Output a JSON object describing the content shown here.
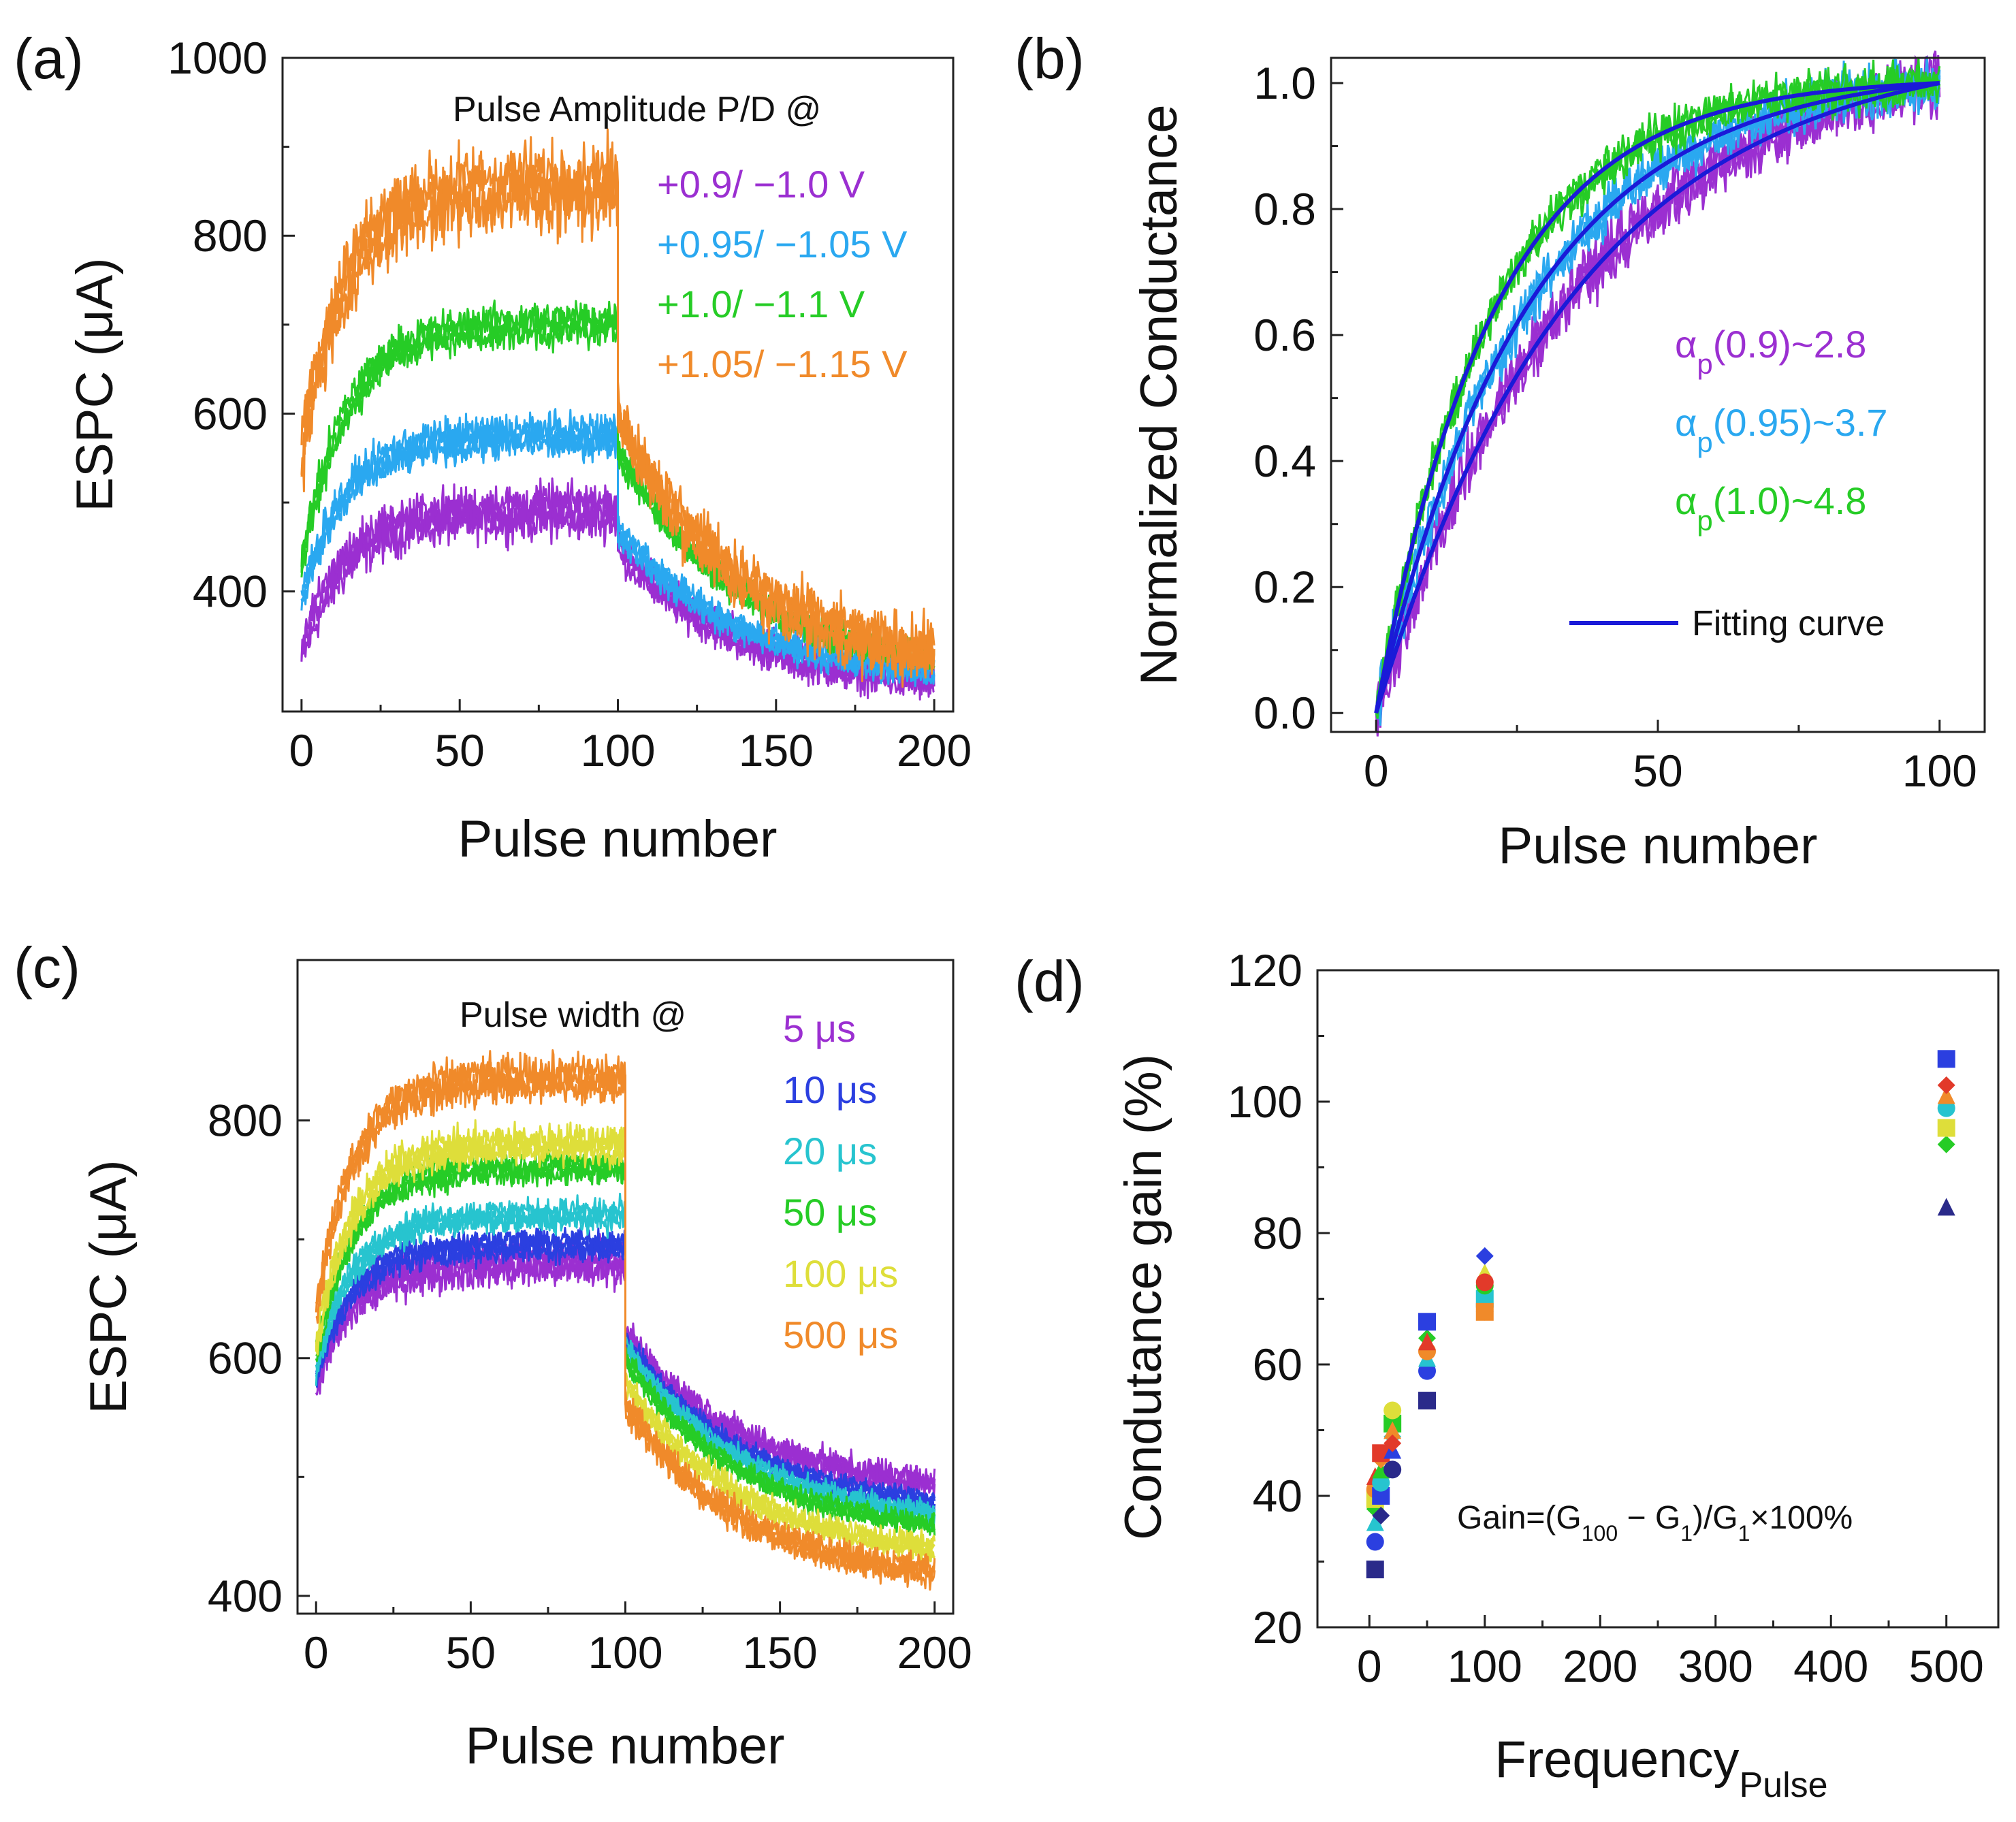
{
  "colors": {
    "purple": "#9b2fd1",
    "sky": "#2aa8f0",
    "green": "#26cc26",
    "orange": "#f08a2a",
    "blue": "#2b3fe0",
    "cyan": "#27c4cf",
    "yellow": "#dede3a",
    "fit": "#1a1ad8",
    "navy": "#2a2a8a",
    "red": "#e23a2a"
  },
  "chart_data": [
    {
      "id": "a",
      "type": "line",
      "panel_label": "(a)",
      "xlabel": "Pulse number",
      "ylabel": "ESPC (μA)",
      "xlim": [
        -6,
        206
      ],
      "ylim": [
        265,
        1000
      ],
      "xticks": [
        "0",
        "50",
        "100",
        "150",
        "200"
      ],
      "xtick_values": [
        0,
        50,
        100,
        150,
        200
      ],
      "yticks": [
        "400",
        "600",
        "800",
        "1000"
      ],
      "ytick_values": [
        400,
        600,
        800,
        1000
      ],
      "legend_title": "Pulse Amplitude P/D @",
      "legend": [
        "+0.9/ −1.0 V",
        "+0.95/ −1.05 V",
        "+1.0/ −1.1 V",
        "+1.05/ −1.15 V"
      ],
      "series": [
        {
          "name": "+0.9/ −1.0 V",
          "color": "purple",
          "start": 330,
          "potentiation_end": 490,
          "depression_start": 450,
          "end": 300,
          "noise": 22
        },
        {
          "name": "+0.95/ −1.05 V",
          "color": "sky",
          "start": 390,
          "potentiation_end": 575,
          "depression_start": 470,
          "end": 310,
          "noise": 18
        },
        {
          "name": "+1.0/ −1.1 V",
          "color": "green",
          "start": 430,
          "potentiation_end": 700,
          "depression_start": 560,
          "end": 328,
          "noise": 18
        },
        {
          "name": "+1.05/ −1.15 V",
          "color": "orange",
          "start": 560,
          "potentiation_end": 855,
          "depression_start": 600,
          "end": 330,
          "noise": 35
        }
      ]
    },
    {
      "id": "b",
      "type": "line",
      "panel_label": "(b)",
      "xlabel": "Pulse number",
      "ylabel": "Normalized Conductance",
      "xlim": [
        -8,
        108
      ],
      "ylim": [
        -0.03,
        1.04
      ],
      "xticks": [
        "0",
        "50",
        "100"
      ],
      "xtick_values": [
        0,
        50,
        100
      ],
      "yticks": [
        "0.0",
        "0.2",
        "0.4",
        "0.6",
        "0.8",
        "1.0"
      ],
      "ytick_values": [
        0,
        0.2,
        0.4,
        0.6,
        0.8,
        1.0
      ],
      "legend_fit": "Fitting curve",
      "annotations": [
        {
          "base": "α",
          "sub": "p",
          "rest": "(0.9)~2.8",
          "color": "purple"
        },
        {
          "base": "α",
          "sub": "p",
          "rest": "(0.95)~3.7",
          "color": "sky"
        },
        {
          "base": "α",
          "sub": "p",
          "rest": "(1.0)~4.8",
          "color": "green"
        }
      ],
      "series": [
        {
          "name": "0.9",
          "alpha": 2.8,
          "color": "purple",
          "noise": 0.05
        },
        {
          "name": "0.95",
          "alpha": 3.7,
          "color": "sky",
          "noise": 0.04
        },
        {
          "name": "1.0",
          "alpha": 4.8,
          "color": "green",
          "noise": 0.035
        }
      ]
    },
    {
      "id": "c",
      "type": "line",
      "panel_label": "(c)",
      "xlabel": "Pulse number",
      "ylabel": "ESPC (μA)",
      "xlim": [
        -6,
        206
      ],
      "ylim": [
        385,
        935
      ],
      "xticks": [
        "0",
        "50",
        "100",
        "150",
        "200"
      ],
      "xtick_values": [
        0,
        50,
        100,
        150,
        200
      ],
      "yticks": [
        "400",
        "600",
        "800"
      ],
      "ytick_values": [
        400,
        600,
        800
      ],
      "legend_title": "Pulse width @",
      "legend": [
        "5 μs",
        "10 μs",
        "20 μs",
        "50 μs",
        "100 μs",
        "500 μs"
      ],
      "series": [
        {
          "name": "5 μs",
          "color": "purple",
          "start": 580,
          "potentiation_end": 680,
          "depression_start": 620,
          "end": 495,
          "noise": 14
        },
        {
          "name": "10 μs",
          "color": "blue",
          "start": 585,
          "potentiation_end": 695,
          "depression_start": 615,
          "end": 480,
          "noise": 10
        },
        {
          "name": "20 μs",
          "color": "cyan",
          "start": 590,
          "potentiation_end": 720,
          "depression_start": 610,
          "end": 470,
          "noise": 10
        },
        {
          "name": "50 μs",
          "color": "green",
          "start": 600,
          "potentiation_end": 760,
          "depression_start": 600,
          "end": 460,
          "noise": 10
        },
        {
          "name": "100 μs",
          "color": "yellow",
          "start": 610,
          "potentiation_end": 780,
          "depression_start": 580,
          "end": 440,
          "noise": 12
        },
        {
          "name": "500 μs",
          "color": "orange",
          "start": 640,
          "potentiation_end": 835,
          "depression_start": 560,
          "end": 420,
          "noise": 14
        }
      ]
    },
    {
      "id": "d",
      "type": "scatter",
      "panel_label": "(d)",
      "xlabel": "Frequency",
      "xlabel_sub": "Pulse",
      "ylabel": "Condutance gain (%)",
      "xlim": [
        -45,
        545
      ],
      "ylim": [
        20,
        120
      ],
      "xticks": [
        "0",
        "100",
        "200",
        "300",
        "400",
        "500"
      ],
      "xtick_values": [
        0,
        100,
        200,
        300,
        400,
        500
      ],
      "yticks": [
        "20",
        "40",
        "60",
        "80",
        "100",
        "120"
      ],
      "ytick_values": [
        20,
        40,
        60,
        80,
        100,
        120
      ],
      "formula": {
        "pre": "Gain=(G",
        "sub1": "100",
        "mid": " − G",
        "sub2": "1",
        "mid2": ")/G",
        "sub3": "1",
        "post": "×100%"
      },
      "points": [
        {
          "x": 5,
          "y": 28.8,
          "color": "navy"
        },
        {
          "x": 5,
          "y": 33,
          "color": "blue"
        },
        {
          "x": 5,
          "y": 36,
          "color": "cyan"
        },
        {
          "x": 5,
          "y": 38,
          "color": "green"
        },
        {
          "x": 5,
          "y": 39.5,
          "color": "yellow"
        },
        {
          "x": 5,
          "y": 41,
          "color": "orange"
        },
        {
          "x": 5,
          "y": 43,
          "color": "red"
        },
        {
          "x": 10,
          "y": 37,
          "color": "navy"
        },
        {
          "x": 10,
          "y": 40,
          "color": "blue"
        },
        {
          "x": 10,
          "y": 42,
          "color": "cyan"
        },
        {
          "x": 10,
          "y": 44,
          "color": "green"
        },
        {
          "x": 10,
          "y": 45.5,
          "color": "orange"
        },
        {
          "x": 10,
          "y": 46.5,
          "color": "red"
        },
        {
          "x": 20,
          "y": 44,
          "color": "navy"
        },
        {
          "x": 20,
          "y": 47,
          "color": "blue"
        },
        {
          "x": 20,
          "y": 49,
          "color": "cyan"
        },
        {
          "x": 20,
          "y": 51,
          "color": "green"
        },
        {
          "x": 20,
          "y": 53,
          "color": "yellow"
        },
        {
          "x": 20,
          "y": 50,
          "color": "orange"
        },
        {
          "x": 20,
          "y": 48,
          "color": "red"
        },
        {
          "x": 50,
          "y": 54.5,
          "color": "navy"
        },
        {
          "x": 50,
          "y": 59,
          "color": "blue"
        },
        {
          "x": 50,
          "y": 61,
          "color": "cyan"
        },
        {
          "x": 50,
          "y": 64,
          "color": "green"
        },
        {
          "x": 50,
          "y": 66.5,
          "color": "blue"
        },
        {
          "x": 50,
          "y": 62,
          "color": "orange"
        },
        {
          "x": 50,
          "y": 63.5,
          "color": "red"
        },
        {
          "x": 100,
          "y": 68,
          "color": "navy"
        },
        {
          "x": 100,
          "y": 70,
          "color": "cyan"
        },
        {
          "x": 100,
          "y": 72,
          "color": "green"
        },
        {
          "x": 100,
          "y": 74,
          "color": "yellow"
        },
        {
          "x": 100,
          "y": 76.5,
          "color": "blue"
        },
        {
          "x": 100,
          "y": 68,
          "color": "orange"
        },
        {
          "x": 100,
          "y": 72.5,
          "color": "red"
        },
        {
          "x": 500,
          "y": 84,
          "color": "navy"
        },
        {
          "x": 500,
          "y": 93.5,
          "color": "green"
        },
        {
          "x": 500,
          "y": 96,
          "color": "yellow"
        },
        {
          "x": 500,
          "y": 99,
          "color": "cyan"
        },
        {
          "x": 500,
          "y": 101,
          "color": "orange"
        },
        {
          "x": 500,
          "y": 102.5,
          "color": "red"
        },
        {
          "x": 500,
          "y": 106.5,
          "color": "blue"
        }
      ]
    }
  ]
}
